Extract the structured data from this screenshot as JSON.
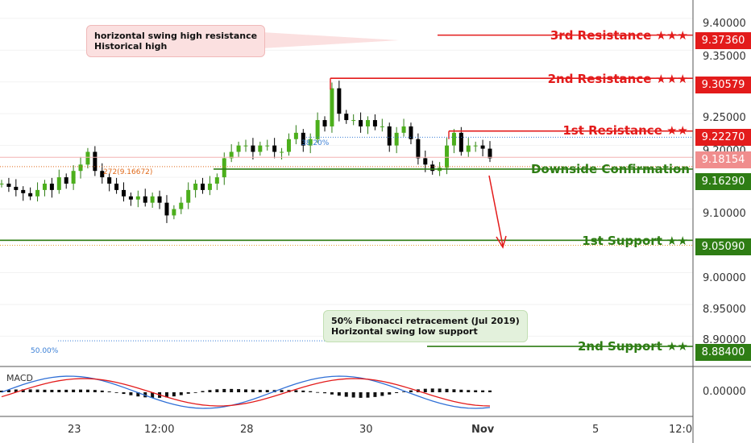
{
  "chart_data": {
    "type": "candlestick",
    "y_ticks": [
      "9.40000",
      "9.35000",
      "9.25000",
      "9.20000",
      "9.10000",
      "9.00000",
      "8.95000",
      "8.90000"
    ],
    "x_ticks": [
      "23",
      "12:00",
      "28",
      "30",
      "Nov",
      "5",
      "12:0"
    ],
    "ylim": [
      8.88,
      9.41
    ],
    "levels": [
      {
        "label": "3rd Resistance ★★★",
        "price": "9.37360",
        "value": 9.3736,
        "color": "#e31b1b"
      },
      {
        "label": "2nd Resistance ★★★",
        "price": "9.30579",
        "value": 9.30579,
        "color": "#e31b1b"
      },
      {
        "label": "1st Resistance ★★",
        "price": "9.22270",
        "value": 9.2227,
        "color": "#e31b1b"
      },
      {
        "label": "Downside Confirmation",
        "price": "9.16290",
        "value": 9.1629,
        "color": "#2e7d14"
      },
      {
        "label": "1st Support ★★",
        "price": "9.05090",
        "value": 9.0509,
        "color": "#2e7d14"
      },
      {
        "label": "2nd Support ★★",
        "price": "8.88400",
        "value": 8.884,
        "color": "#2e7d14"
      }
    ],
    "current_price": {
      "price": "9.18154",
      "value": 9.18154,
      "color": "#f08d8d"
    },
    "fib_labels": {
      "fib_382": "38.20%",
      "fib_272": "272(9.16672)",
      "fib_50": "50.00%"
    },
    "annotations": {
      "resistance_note": [
        "horizontal swing high resistance",
        "Historical high"
      ],
      "support_note": [
        "50% Fibonacci retracement (Jul 2019)",
        "Horizontal swing low support"
      ]
    },
    "indicator": {
      "name": "MACD",
      "tick": "0.00000"
    },
    "close_path": [
      9.14,
      9.135,
      9.13,
      9.125,
      9.12,
      9.13,
      9.14,
      9.13,
      9.15,
      9.14,
      9.16,
      9.17,
      9.19,
      9.16,
      9.15,
      9.14,
      9.13,
      9.12,
      9.115,
      9.12,
      9.11,
      9.12,
      9.11,
      9.09,
      9.1,
      9.11,
      9.13,
      9.14,
      9.13,
      9.14,
      9.15,
      9.18,
      9.19,
      9.2,
      9.2,
      9.19,
      9.2,
      9.2,
      9.19,
      9.19,
      9.21,
      9.22,
      9.2,
      9.21,
      9.24,
      9.23,
      9.29,
      9.25,
      9.24,
      9.24,
      9.23,
      9.24,
      9.23,
      9.23,
      9.2,
      9.22,
      9.23,
      9.21,
      9.18,
      9.17,
      9.16,
      9.165,
      9.2,
      9.22,
      9.19,
      9.2,
      9.2,
      9.195,
      9.18
    ]
  }
}
